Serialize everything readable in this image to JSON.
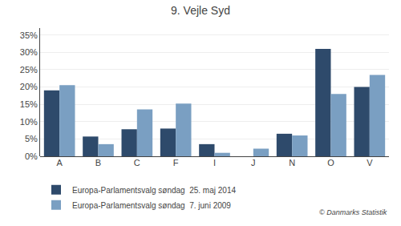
{
  "chart_data": {
    "type": "bar",
    "title": "9. Vejle Syd",
    "categories": [
      "A",
      "B",
      "C",
      "F",
      "I",
      "J",
      "N",
      "O",
      "V"
    ],
    "series": [
      {
        "name": "Europa-Parlamentsvalg søndag  25. maj 2014",
        "color": "#2e4a6b",
        "values": [
          19.0,
          5.7,
          7.8,
          8.0,
          3.5,
          0.0,
          6.5,
          31.0,
          20.0
        ]
      },
      {
        "name": "Europa-Parlamentsvalg søndag  7. juni 2009",
        "color": "#7a9fc2",
        "values": [
          20.5,
          3.5,
          13.5,
          15.2,
          1.0,
          2.2,
          6.0,
          18.0,
          23.5
        ]
      }
    ],
    "ylim": [
      0,
      37
    ],
    "yticks": [
      {
        "value": 0,
        "label": "0%"
      },
      {
        "value": 5,
        "label": "5%"
      },
      {
        "value": 10,
        "label": "10%"
      },
      {
        "value": 15,
        "label": "15%"
      },
      {
        "value": 20,
        "label": "20%"
      },
      {
        "value": 25,
        "label": "25%"
      },
      {
        "value": 30,
        "label": "30%"
      },
      {
        "value": 35,
        "label": "35%"
      }
    ],
    "grid": true,
    "legend": "bottom",
    "annotations": [
      "© Danmarks Statistik"
    ]
  }
}
